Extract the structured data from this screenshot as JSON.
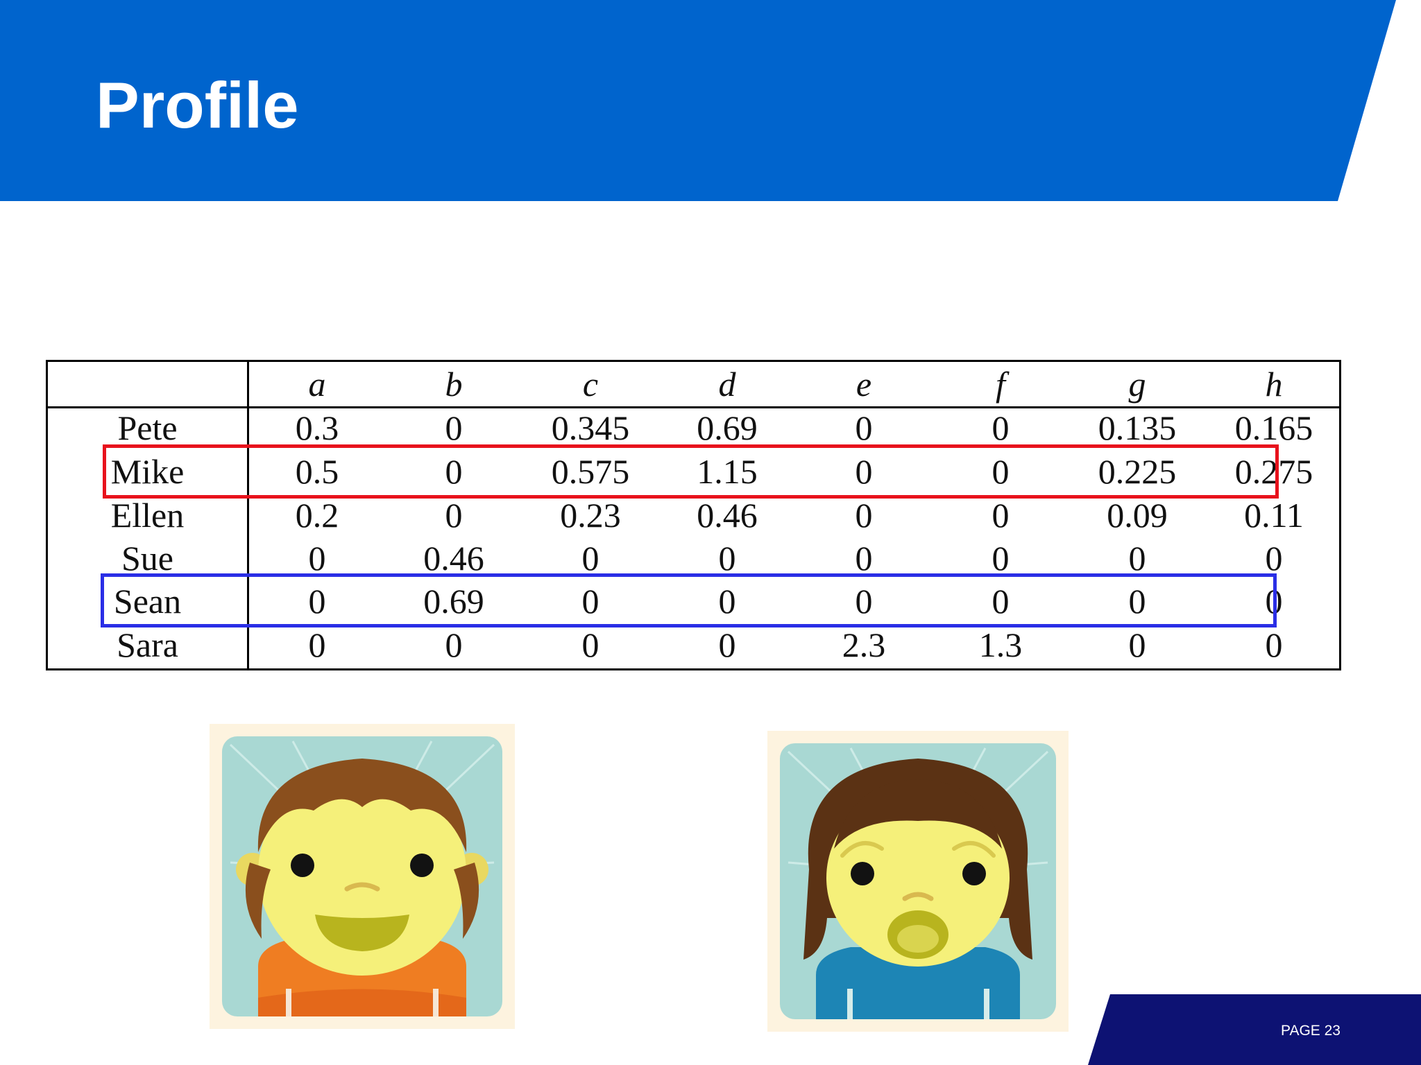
{
  "slide": {
    "title": "Profile",
    "page_label": "PAGE 23"
  },
  "table": {
    "columns": [
      "a",
      "b",
      "c",
      "d",
      "e",
      "f",
      "g",
      "h"
    ],
    "rows": [
      {
        "name": "Pete",
        "values": [
          "0.3",
          "0",
          "0.345",
          "0.69",
          "0",
          "0",
          "0.135",
          "0.165"
        ]
      },
      {
        "name": "Mike",
        "values": [
          "0.5",
          "0",
          "0.575",
          "1.15",
          "0",
          "0",
          "0.225",
          "0.275"
        ]
      },
      {
        "name": "Ellen",
        "values": [
          "0.2",
          "0",
          "0.23",
          "0.46",
          "0",
          "0",
          "0.09",
          "0.11"
        ]
      },
      {
        "name": "Sue",
        "values": [
          "0",
          "0.46",
          "0",
          "0",
          "0",
          "0",
          "0",
          "0"
        ]
      },
      {
        "name": "Sean",
        "values": [
          "0",
          "0.69",
          "0",
          "0",
          "0",
          "0",
          "0",
          "0"
        ]
      },
      {
        "name": "Sara",
        "values": [
          "0",
          "0",
          "0",
          "0",
          "2.3",
          "1.3",
          "0",
          "0"
        ]
      }
    ],
    "highlighted_rows": [
      {
        "row": "Mike",
        "color": "#e8121c"
      },
      {
        "row": "Sean",
        "color": "#2a2ee6"
      }
    ]
  },
  "colors": {
    "header_blue": "#0064cd",
    "footer_navy": "#0d1273",
    "text": "#111111"
  },
  "avatars": [
    {
      "icon": "boy-avatar-icon"
    },
    {
      "icon": "girl-avatar-icon"
    }
  ]
}
